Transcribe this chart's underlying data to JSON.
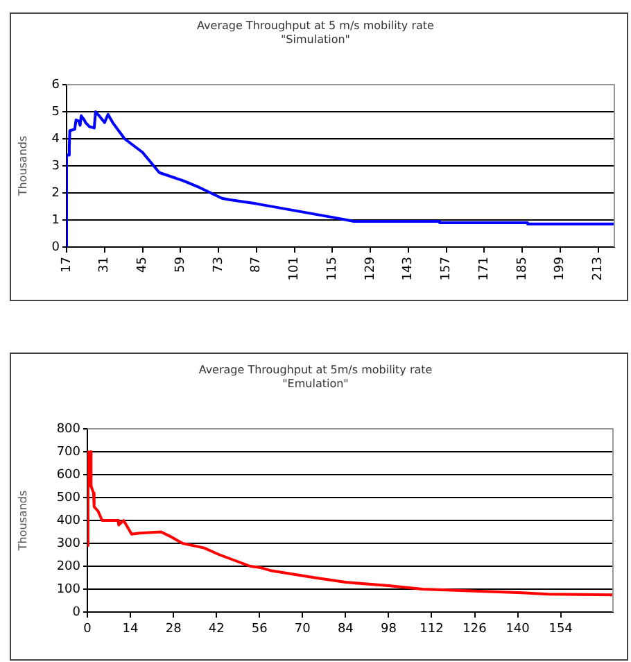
{
  "chart_data": [
    {
      "type": "line",
      "title": "Average Throughput at 5 m/s mobility rate",
      "subtitle": "\"Simulation\"",
      "ylabel": "Thousands",
      "series": [
        {
          "color": "#0000ff",
          "x": [
            17,
            17,
            17.8,
            18,
            18.2,
            20,
            20.5,
            21.5,
            22,
            22.4,
            23.5,
            24,
            25.4,
            27.2,
            27.7,
            29,
            31,
            32.3,
            34,
            38.4,
            45,
            51.2,
            60,
            66,
            74.3,
            77,
            87,
            101,
            115,
            123,
            154.6,
            154.6,
            187,
            187,
            219
          ],
          "values": [
            0,
            3.4,
            3.4,
            3.7,
            4.3,
            4.35,
            4.7,
            4.65,
            4.5,
            4.85,
            4.7,
            4.6,
            4.45,
            4.4,
            5.0,
            4.85,
            4.6,
            4.9,
            4.6,
            4.0,
            3.5,
            2.75,
            2.45,
            2.2,
            1.8,
            1.75,
            1.6,
            1.35,
            1.1,
            0.95,
            0.95,
            0.9,
            0.9,
            0.85,
            0.85
          ]
        }
      ],
      "xlim": [
        17,
        219
      ],
      "xticks": [
        17,
        31,
        45,
        59,
        73,
        87,
        101,
        115,
        129,
        143,
        157,
        171,
        185,
        199,
        213
      ],
      "ylim": [
        0,
        6
      ],
      "yticks": [
        0,
        1,
        2,
        3,
        4,
        5,
        6
      ],
      "grid": "y",
      "legend": false,
      "marker": "none",
      "line_style": "solid"
    },
    {
      "type": "line",
      "title": "Average Throughput at 5m/s mobility rate",
      "subtitle": "\"Emulation\"",
      "ylabel": "Thousands",
      "series": [
        {
          "color": "#ff0000",
          "x": [
            0,
            0.2,
            0.5,
            1,
            1.2,
            2,
            2.2,
            3.5,
            4.8,
            10,
            10.2,
            11,
            11.8,
            14.4,
            17,
            24,
            27,
            31,
            38,
            43,
            53,
            56,
            60,
            74,
            84,
            98,
            109,
            126,
            140,
            150,
            171
          ],
          "values": [
            290,
            700,
            550,
            700,
            550,
            520,
            460,
            440,
            400,
            400,
            380,
            390,
            400,
            340,
            345,
            350,
            330,
            300,
            280,
            250,
            200,
            195,
            180,
            150,
            130,
            115,
            100,
            92,
            85,
            78,
            75
          ]
        }
      ],
      "xlim": [
        0,
        171
      ],
      "xticks": [
        0,
        14,
        28,
        42,
        56,
        70,
        84,
        98,
        112,
        126,
        140,
        154
      ],
      "ylim": [
        0,
        800
      ],
      "yticks": [
        0,
        100,
        200,
        300,
        400,
        500,
        600,
        700,
        800
      ],
      "grid": "y",
      "legend": false,
      "marker": "none",
      "line_style": "solid"
    }
  ]
}
